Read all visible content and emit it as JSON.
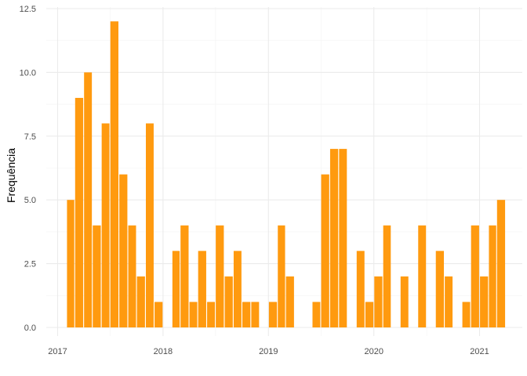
{
  "chart_data": {
    "type": "bar",
    "xlabel": "",
    "ylabel": "Frequência",
    "ylim": [
      0,
      12.5
    ],
    "xlim": [
      "2017-01-01",
      "2021-04-15"
    ],
    "grid": true,
    "y_ticks": [
      0,
      2.5,
      5,
      7.5,
      10,
      12.5
    ],
    "y_tick_labels": [
      "0.0",
      "2.5",
      "5.0",
      "7.5",
      "10.0",
      "12.5"
    ],
    "x_ticks": [
      "2017-01-01",
      "2018-01-01",
      "2019-01-01",
      "2020-01-01",
      "2021-01-01"
    ],
    "x_tick_labels": [
      "2017",
      "2018",
      "2019",
      "2020",
      "2021"
    ],
    "bar_color": "#FF9A0F",
    "x": [
      "2017-02",
      "2017-03",
      "2017-04",
      "2017-05",
      "2017-06",
      "2017-07",
      "2017-08",
      "2017-09",
      "2017-10",
      "2017-11",
      "2017-12",
      "2018-02",
      "2018-03",
      "2018-04",
      "2018-05",
      "2018-06",
      "2018-07",
      "2018-08",
      "2018-09",
      "2018-10",
      "2018-11",
      "2019-01",
      "2019-02",
      "2019-03",
      "2019-06",
      "2019-07",
      "2019-08",
      "2019-09",
      "2019-11",
      "2019-12",
      "2020-01",
      "2020-02",
      "2020-04",
      "2020-06",
      "2020-08",
      "2020-09",
      "2020-11",
      "2020-12",
      "2021-01",
      "2021-02",
      "2021-03"
    ],
    "values": [
      5,
      9,
      10,
      4,
      8,
      12,
      6,
      4,
      2,
      8,
      1,
      3,
      4,
      1,
      3,
      1,
      4,
      2,
      3,
      1,
      1,
      1,
      4,
      2,
      1,
      6,
      7,
      7,
      3,
      1,
      2,
      4,
      2,
      4,
      3,
      2,
      1,
      4,
      2,
      4,
      5
    ]
  }
}
